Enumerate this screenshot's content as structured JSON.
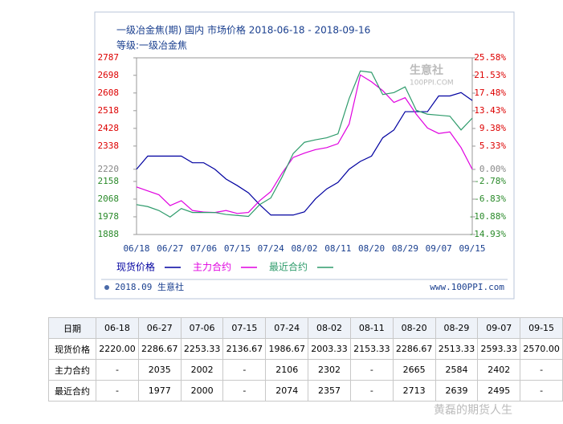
{
  "chart_data": {
    "type": "line",
    "title": "一级冶金焦(期) 国内 市场价格 2018-06-18 - 2018-09-16",
    "subtitle": "等级:一级冶金焦",
    "watermark": "生意社",
    "watermark_site": "100PPI.COM",
    "footer_left": "2018.09 生意社",
    "footer_right": "www.100PPI.com",
    "categories": [
      "06/18",
      null,
      null,
      "06/27",
      null,
      null,
      "07/06",
      null,
      null,
      "07/15",
      null,
      null,
      "07/24",
      null,
      null,
      "08/02",
      null,
      null,
      "08/11",
      null,
      null,
      "08/20",
      null,
      null,
      "08/29",
      null,
      null,
      "09/07",
      null,
      null,
      "09/15"
    ],
    "ylim": [
      1888,
      2787
    ],
    "yticks": [
      2787,
      2698,
      2608,
      2518,
      2428,
      2338,
      2220,
      2158,
      2068,
      1978,
      1888
    ],
    "y2lim": [
      -14.93,
      25.58
    ],
    "y2ticks": [
      {
        "value": 25.58,
        "label": "25.58%"
      },
      {
        "value": 21.53,
        "label": "21.53%"
      },
      {
        "value": 17.48,
        "label": "17.48%"
      },
      {
        "value": 13.43,
        "label": "13.43%"
      },
      {
        "value": 9.38,
        "label": "9.38%"
      },
      {
        "value": 5.33,
        "label": "5.33%"
      },
      {
        "value": 0,
        "label": "0.00%"
      },
      {
        "value": -2.78,
        "label": "-2.78%"
      },
      {
        "value": -6.83,
        "label": "-6.83%"
      },
      {
        "value": -10.88,
        "label": "-10.88%"
      },
      {
        "value": -14.93,
        "label": "-14.93%"
      }
    ],
    "series": [
      {
        "name": "现货价格",
        "color": "#0000a0",
        "values": [
          2220,
          2287,
          2287,
          2287,
          2287,
          2253,
          2253,
          2220,
          2170,
          2137,
          2100,
          2040,
          1987,
          1987,
          1987,
          2003,
          2070,
          2120,
          2153,
          2220,
          2260,
          2287,
          2380,
          2420,
          2513,
          2513,
          2513,
          2593,
          2593,
          2610,
          2570
        ]
      },
      {
        "name": "主力合约",
        "color": "#e000e0",
        "values": [
          2130,
          2110,
          2090,
          2035,
          2060,
          2010,
          2002,
          2000,
          2010,
          1995,
          2000,
          2060,
          2106,
          2200,
          2280,
          2302,
          2320,
          2330,
          2350,
          2450,
          2700,
          2665,
          2620,
          2560,
          2584,
          2500,
          2430,
          2402,
          2410,
          2330,
          2220
        ]
      },
      {
        "name": "最近合约",
        "color": "#2e9b6b",
        "values": [
          2040,
          2030,
          2010,
          1977,
          2020,
          2000,
          2000,
          2000,
          1990,
          1985,
          1980,
          2040,
          2074,
          2180,
          2300,
          2357,
          2370,
          2380,
          2400,
          2580,
          2720,
          2713,
          2600,
          2610,
          2639,
          2520,
          2500,
          2495,
          2490,
          2420,
          2480
        ]
      }
    ]
  },
  "table": {
    "rows": [
      [
        "日期",
        "06-18",
        "06-27",
        "07-06",
        "07-15",
        "07-24",
        "08-02",
        "08-11",
        "08-20",
        "08-29",
        "09-07",
        "09-15"
      ],
      [
        "现货价格",
        "2220.00",
        "2286.67",
        "2253.33",
        "2136.67",
        "1986.67",
        "2003.33",
        "2153.33",
        "2286.67",
        "2513.33",
        "2593.33",
        "2570.00"
      ],
      [
        "主力合约",
        "-",
        "2035",
        "2002",
        "-",
        "2106",
        "2302",
        "-",
        "2665",
        "2584",
        "2402",
        "-"
      ],
      [
        "最近合约",
        "-",
        "1977",
        "2000",
        "-",
        "2074",
        "2357",
        "-",
        "2713",
        "2639",
        "2495",
        "-"
      ]
    ]
  },
  "weibo_watermark": "黄磊的期货人生"
}
